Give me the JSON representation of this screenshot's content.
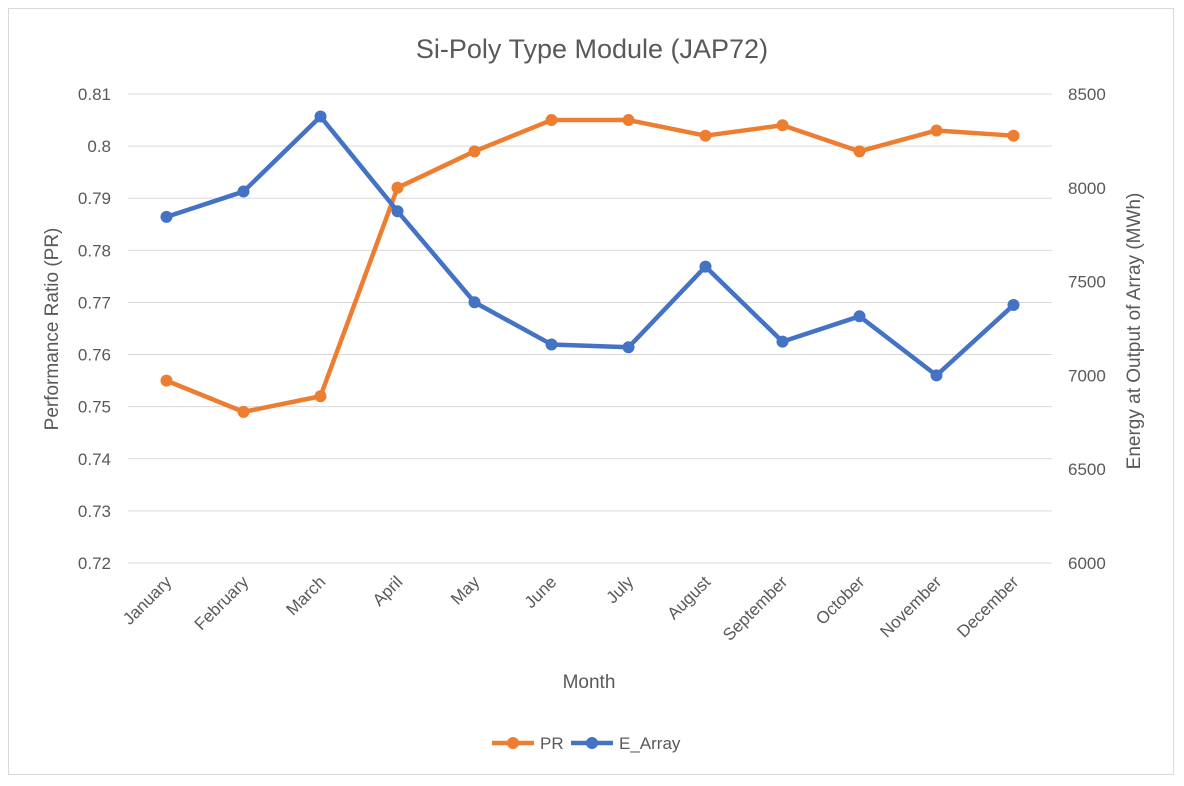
{
  "chart_data": {
    "type": "line",
    "title": "Si-Poly Type Module (JAP72)",
    "xlabel": "Month",
    "ylabel": "Performance Ratio (PR)",
    "y2label": "Energy at Output of Array (MWh)",
    "categories": [
      "January",
      "February",
      "March",
      "April",
      "May",
      "June",
      "July",
      "August",
      "September",
      "October",
      "November",
      "December"
    ],
    "ylim": [
      0.72,
      0.81
    ],
    "yticks": [
      "0.81",
      "0.8",
      "0.79",
      "0.78",
      "0.77",
      "0.76",
      "0.75",
      "0.74",
      "0.73",
      "0.72"
    ],
    "yticks_values": [
      0.81,
      0.8,
      0.79,
      0.78,
      0.77,
      0.76,
      0.75,
      0.74,
      0.73,
      0.72
    ],
    "y2lim": [
      6000,
      8500
    ],
    "y2ticks": [
      "8500",
      "8000",
      "7500",
      "7000",
      "6500",
      "6000"
    ],
    "y2ticks_values": [
      8500,
      8000,
      7500,
      7000,
      6500,
      6000
    ],
    "grid": true,
    "legend_position": "bottom-center",
    "series": [
      {
        "name": "PR",
        "axis": "left",
        "color": "#ED7D31",
        "values": [
          0.755,
          0.749,
          0.752,
          0.792,
          0.799,
          0.805,
          0.805,
          0.802,
          0.804,
          0.799,
          0.803,
          0.802
        ]
      },
      {
        "name": "E_Array",
        "axis": "right",
        "color": "#4472C4",
        "values": [
          7845,
          7980,
          8380,
          7875,
          7390,
          7165,
          7150,
          7580,
          7180,
          7315,
          7000,
          7375
        ]
      }
    ]
  }
}
